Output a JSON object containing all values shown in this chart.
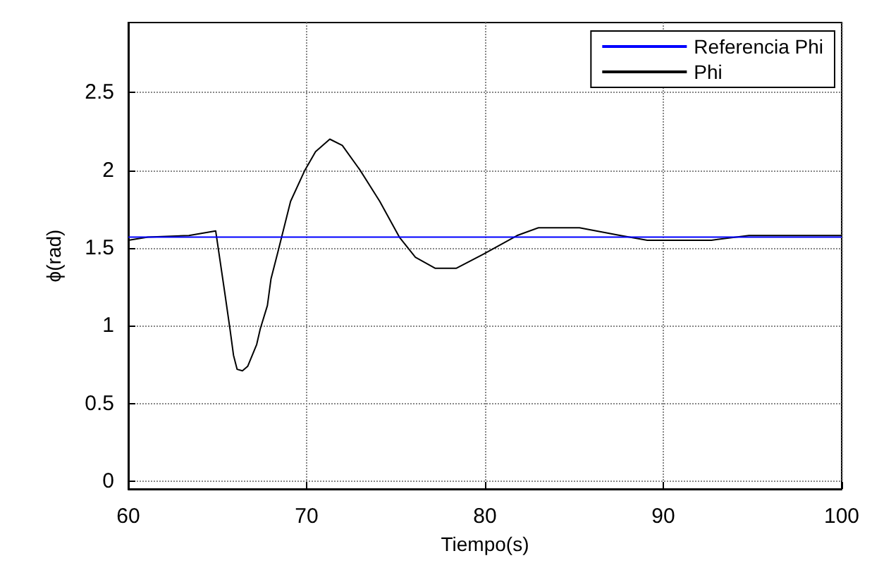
{
  "chart_data": {
    "type": "line",
    "xlabel": "Tiempo(s)",
    "ylabel": "ϕ(rad)",
    "xlim": [
      60,
      100
    ],
    "xticks": [
      60,
      70,
      80,
      90,
      100
    ],
    "ylim": [
      -0.05,
      2.95
    ],
    "yticks": [
      0,
      0.5,
      1,
      1.5,
      2,
      2.5
    ],
    "grid": true,
    "legend": "top right",
    "line_style": "solid",
    "marker": "none",
    "series": [
      {
        "name": "Referencia Phi",
        "color": "#0000ff",
        "x": [
          60,
          100
        ],
        "values": [
          1.57,
          1.57
        ]
      },
      {
        "name": "Phi",
        "color": "#000000",
        "x": [
          60,
          61.1,
          63.4,
          64.9,
          65.4,
          65.7,
          65.9,
          66.1,
          66.4,
          66.7,
          67.2,
          67.4,
          67.8,
          68.0,
          68.4,
          69.1,
          69.9,
          70.5,
          71.3,
          72.0,
          73.0,
          74.1,
          75.2,
          76.1,
          77.2,
          78.4,
          79.9,
          81.8,
          83.0,
          85.3,
          87.6,
          89.1,
          92.7,
          94.8,
          100
        ],
        "values": [
          1.55,
          1.57,
          1.58,
          1.61,
          1.22,
          0.98,
          0.81,
          0.72,
          0.71,
          0.74,
          0.88,
          0.98,
          1.13,
          1.3,
          1.48,
          1.8,
          2.0,
          2.12,
          2.2,
          2.16,
          2.0,
          1.8,
          1.57,
          1.44,
          1.37,
          1.37,
          1.46,
          1.58,
          1.63,
          1.63,
          1.58,
          1.55,
          1.55,
          1.58,
          1.58
        ]
      }
    ]
  }
}
